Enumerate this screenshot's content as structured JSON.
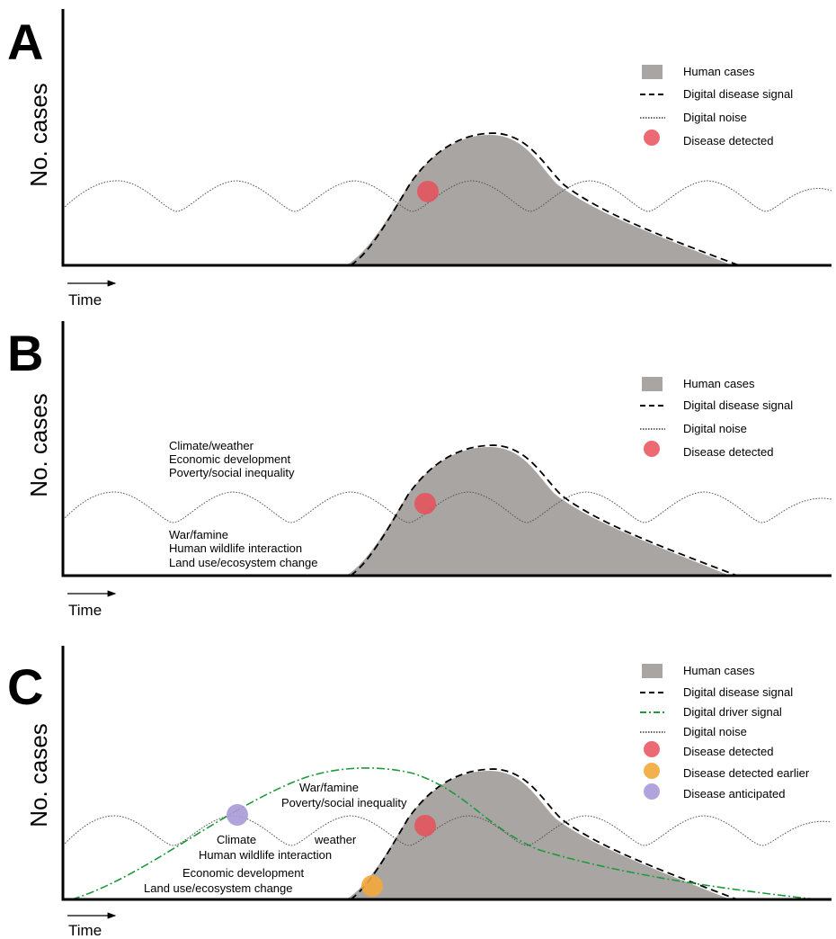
{
  "panels": [
    {
      "letter": "A",
      "ylabel": "No. cases",
      "xlabel": "Time",
      "legend": [
        {
          "key": "human",
          "label": "Human cases"
        },
        {
          "key": "disease",
          "label": "Digital disease signal"
        },
        {
          "key": "noise",
          "label": "Digital noise"
        },
        {
          "key": "detected",
          "label": "Disease detected"
        }
      ],
      "drivers": []
    },
    {
      "letter": "B",
      "ylabel": "No. cases",
      "xlabel": "Time",
      "legend": [
        {
          "key": "human",
          "label": "Human cases"
        },
        {
          "key": "disease",
          "label": "Digital disease signal"
        },
        {
          "key": "noise",
          "label": "Digital noise"
        },
        {
          "key": "detected",
          "label": "Disease detected"
        }
      ],
      "drivers": [
        "Climate/weather",
        "Economic development",
        "Poverty/social inequality",
        "War/famine",
        "Human wildlife interaction",
        "Land use/ecosystem change"
      ]
    },
    {
      "letter": "C",
      "ylabel": "No. cases",
      "xlabel": "Time",
      "legend": [
        {
          "key": "human",
          "label": "Human cases"
        },
        {
          "key": "disease",
          "label": "Digital disease signal"
        },
        {
          "key": "driver",
          "label": "Digital driver signal"
        },
        {
          "key": "noise",
          "label": "Digital noise"
        },
        {
          "key": "detected",
          "label": "Disease detected"
        },
        {
          "key": "earlier",
          "label": "Disease detected earlier"
        },
        {
          "key": "anticipated",
          "label": "Disease anticipated"
        }
      ],
      "drivers": [
        "War/famine",
        "Poverty/social inequality",
        "Climate",
        "weather",
        "Human wildlife interaction",
        "Economic development",
        "Land use/ecosystem change"
      ]
    }
  ],
  "colors": {
    "human_cases": "#a9a5a3",
    "disease_signal": "#000000",
    "noise": "#555555",
    "driver_signal": "#1e9a3c",
    "detected": "#e8505b",
    "detected_earlier": "#f2a93b",
    "anticipated": "#a99ad8"
  }
}
